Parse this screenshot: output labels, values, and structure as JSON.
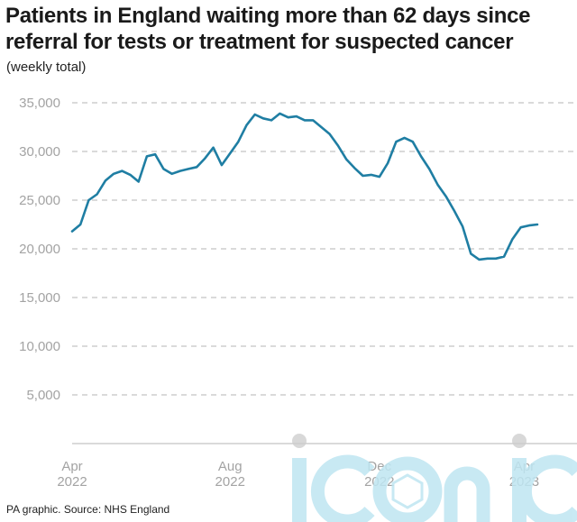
{
  "title": "Patients in England waiting more than 62 days since referral for tests or treatment for suspected cancer",
  "subtitle": "(weekly total)",
  "source": "PA graphic. Source: NHS England",
  "watermark_text": "iconic",
  "colors": {
    "line": "#1f7ea3",
    "grid": "#b5b5b5",
    "axis": "#c4c4c4",
    "tick_text": "#a3a3a3",
    "watermark": "#bfe6f2"
  },
  "chart_data": {
    "type": "line",
    "title": "Patients in England waiting more than 62 days since referral for tests or treatment for suspected cancer",
    "ylabel": "(weekly total)",
    "xlabel": "",
    "ylim": [
      0,
      35000
    ],
    "yticks": [
      5000,
      10000,
      15000,
      20000,
      25000,
      30000,
      35000
    ],
    "ytick_labels": [
      "5,000",
      "10,000",
      "15,000",
      "20,000",
      "25,000",
      "30,000",
      "35,000"
    ],
    "xlim": [
      0,
      53
    ],
    "xticks": [
      {
        "x": 0,
        "line1": "Apr",
        "line2": "2022"
      },
      {
        "x": 18,
        "line1": "Aug",
        "line2": "2022"
      },
      {
        "x": 35,
        "line1": "Dec",
        "line2": "2022"
      },
      {
        "x": 51.5,
        "line1": "Apr",
        "line2": "2023"
      }
    ],
    "grid": true,
    "series": [
      {
        "values": [
          21800,
          22500,
          25000,
          25600,
          27000,
          27700,
          28000,
          27600,
          26900,
          29500,
          29700,
          28200,
          27700,
          28000,
          28200,
          28400,
          29300,
          30400,
          28600,
          29800,
          31000,
          32700,
          33800,
          33400,
          33200,
          33900,
          33500,
          33600,
          33200,
          33200,
          32500,
          31800,
          30600,
          29200,
          28300,
          27500,
          27600,
          27400,
          28800,
          31000,
          31400,
          31000,
          29500,
          28200,
          26600,
          25400,
          23900,
          22300,
          19500,
          18900,
          19000,
          19000,
          19200,
          21000,
          22200,
          22400,
          22500
        ]
      }
    ]
  }
}
